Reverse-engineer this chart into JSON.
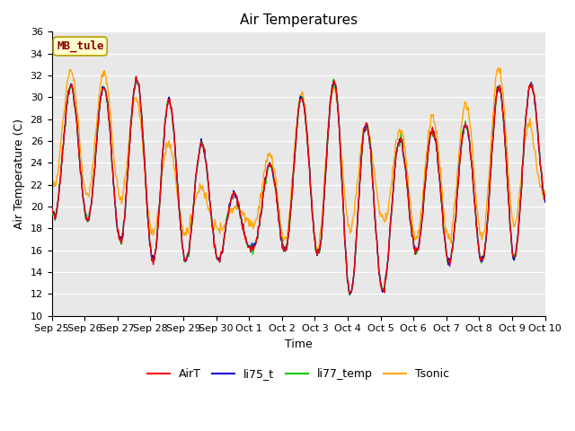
{
  "title": "Air Temperatures",
  "ylabel": "Air Temperature (C)",
  "xlabel": "Time",
  "ylim": [
    10,
    36
  ],
  "yticks": [
    10,
    12,
    14,
    16,
    18,
    20,
    22,
    24,
    26,
    28,
    30,
    32,
    34,
    36
  ],
  "plot_bg_color": "#e8e8e8",
  "fig_bg_color": "#ffffff",
  "annotation_text": "MB_tule",
  "annotation_color": "#8b0000",
  "annotation_bg": "#ffffcc",
  "annotation_border": "#b8a000",
  "series": [
    "AirT",
    "li75_t",
    "li77_temp",
    "Tsonic"
  ],
  "colors": [
    "#ff0000",
    "#0000cc",
    "#00cc00",
    "#ffa500"
  ],
  "linewidth": 1.0,
  "title_fontsize": 11,
  "label_fontsize": 9,
  "tick_fontsize": 8,
  "legend_fontsize": 9,
  "x_tick_labels": [
    "Sep 25",
    "Sep 26",
    "Sep 27",
    "Sep 28",
    "Sep 29",
    "Sep 30",
    "Oct 1",
    "Oct 2",
    "Oct 3",
    "Oct 4",
    "Oct 5",
    "Oct 6",
    "Oct 7",
    "Oct 8",
    "Oct 9",
    "Oct 10"
  ],
  "x_tick_positions": [
    0,
    1,
    2,
    3,
    4,
    5,
    6,
    7,
    8,
    9,
    10,
    11,
    12,
    13,
    14,
    15
  ],
  "n_days": 15,
  "pts_per_day": 48
}
